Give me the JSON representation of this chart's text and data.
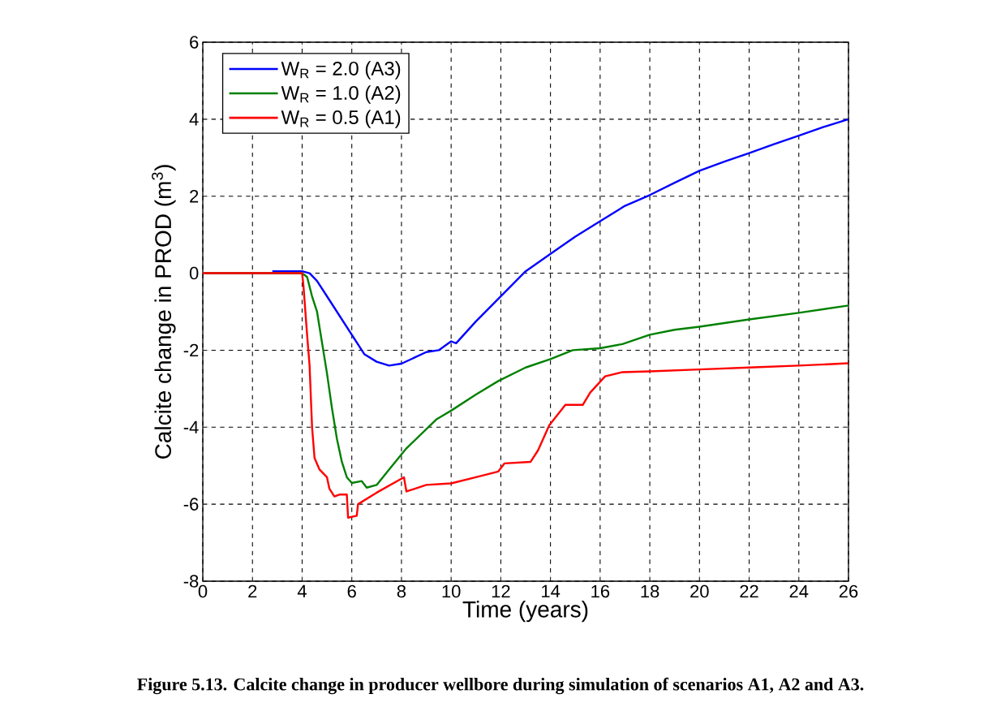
{
  "chart_data": {
    "type": "line",
    "xlabel": "Time (years)",
    "ylabel": "Calcite change in PROD (m$^{3}$)",
    "xlim": [
      0,
      26
    ],
    "ylim": [
      -8,
      6
    ],
    "xticks": [
      0,
      2,
      4,
      6,
      8,
      10,
      12,
      14,
      16,
      18,
      20,
      22,
      24,
      26
    ],
    "yticks": [
      -8,
      -6,
      -4,
      -2,
      0,
      2,
      4,
      6
    ],
    "grid": true,
    "legend": "top left",
    "annotations": [
      "Figure 5.13. Calcite change in producer wellbore during simulation of scenarios A1, A2 and A3."
    ],
    "series": [
      {
        "name": "W$_{R}$ = 2.0 (A3)",
        "color": "#0000ff",
        "x": [
          2.8,
          4.0,
          4.3,
          4.6,
          5.0,
          5.5,
          6.0,
          6.5,
          7.0,
          7.5,
          8.0,
          8.5,
          9.0,
          9.5,
          10.0,
          10.2,
          11.0,
          12.0,
          13.0,
          14.0,
          15.0,
          16.0,
          17.0,
          18.0,
          19.0,
          20.0,
          21.0,
          22.0,
          23.0,
          24.0,
          25.0,
          26.0
        ],
        "values": [
          0.05,
          0.05,
          0.0,
          -0.2,
          -0.6,
          -1.1,
          -1.6,
          -2.1,
          -2.3,
          -2.4,
          -2.35,
          -2.2,
          -2.05,
          -2.0,
          -1.77,
          -1.82,
          -1.25,
          -0.6,
          0.05,
          0.5,
          0.95,
          1.35,
          1.75,
          2.03,
          2.35,
          2.66,
          2.9,
          3.12,
          3.35,
          3.57,
          3.8,
          4.0
        ]
      },
      {
        "name": "W$_{R}$ = 1.0 (A2)",
        "color": "#008000",
        "x": [
          0,
          4.0,
          4.2,
          4.4,
          4.6,
          4.8,
          5.0,
          5.2,
          5.4,
          5.6,
          5.8,
          6.0,
          6.4,
          6.6,
          7.0,
          7.5,
          8.2,
          9.4,
          10.0,
          11.0,
          11.9,
          13.0,
          14.0,
          14.9,
          16.0,
          16.9,
          18.0,
          19.0,
          20.0,
          22.0,
          24.0,
          26.0
        ],
        "values": [
          0.0,
          0.0,
          -0.1,
          -0.6,
          -1.0,
          -1.8,
          -2.6,
          -3.5,
          -4.3,
          -4.9,
          -5.3,
          -5.45,
          -5.4,
          -5.57,
          -5.5,
          -5.1,
          -4.55,
          -3.8,
          -3.57,
          -3.15,
          -2.8,
          -2.45,
          -2.23,
          -2.0,
          -1.95,
          -1.84,
          -1.6,
          -1.47,
          -1.39,
          -1.2,
          -1.03,
          -0.84
        ]
      },
      {
        "name": "W$_{R}$ = 0.5 (A1)",
        "color": "#ff0000",
        "x": [
          0,
          4.0,
          4.05,
          4.2,
          4.3,
          4.4,
          4.5,
          4.7,
          5.0,
          5.1,
          5.3,
          5.5,
          5.8,
          5.85,
          6.2,
          6.25,
          7.0,
          8.1,
          8.2,
          9.0,
          10.0,
          11.0,
          11.9,
          12.15,
          13.2,
          13.5,
          13.95,
          14.6,
          15.3,
          15.6,
          16.2,
          16.9,
          18.0,
          20.0,
          22.0,
          24.0,
          26.0
        ],
        "values": [
          0.0,
          0.0,
          -0.3,
          -1.6,
          -2.4,
          -4.0,
          -4.8,
          -5.1,
          -5.3,
          -5.6,
          -5.8,
          -5.75,
          -5.75,
          -6.35,
          -6.3,
          -6.0,
          -5.7,
          -5.3,
          -5.67,
          -5.5,
          -5.46,
          -5.3,
          -5.15,
          -4.94,
          -4.9,
          -4.6,
          -3.95,
          -3.42,
          -3.42,
          -3.1,
          -2.68,
          -2.57,
          -2.55,
          -2.5,
          -2.45,
          -2.4,
          -2.34
        ]
      }
    ]
  }
}
